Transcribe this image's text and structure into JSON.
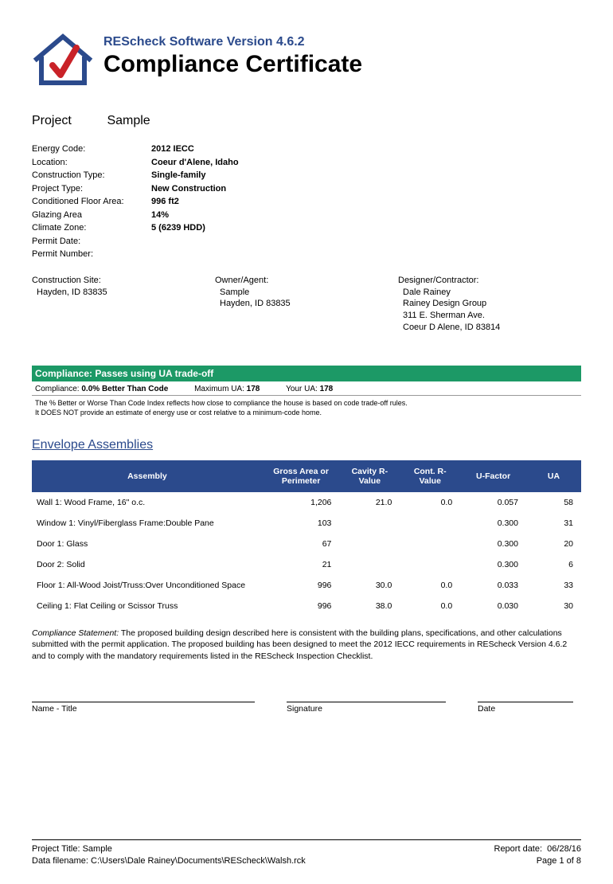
{
  "header": {
    "software_version": "REScheck Software Version 4.6.2",
    "title": "Compliance Certificate",
    "logo_colors": {
      "roof": "#2b4a8c",
      "check": "#c92228"
    }
  },
  "project": {
    "label": "Project",
    "name": "Sample"
  },
  "fields": [
    {
      "label": "Energy Code:",
      "value": "2012 IECC"
    },
    {
      "label": "Location:",
      "value": "Coeur d'Alene, Idaho"
    },
    {
      "label": "Construction Type:",
      "value": "Single-family"
    },
    {
      "label": "Project Type:",
      "value": "New Construction"
    },
    {
      "label": "Conditioned Floor Area:",
      "value": "996 ft2"
    },
    {
      "label": "Glazing Area",
      "value": "14%"
    },
    {
      "label": "Climate Zone:",
      "value": "5  (6239 HDD)"
    },
    {
      "label": "Permit Date:",
      "value": ""
    },
    {
      "label": "Permit Number:",
      "value": ""
    }
  ],
  "contacts": {
    "site": {
      "title": "Construction Site:",
      "lines": [
        "Hayden, ID 83835"
      ]
    },
    "owner": {
      "title": "Owner/Agent:",
      "lines": [
        "Sample",
        "Hayden, ID 83835"
      ]
    },
    "design": {
      "title": "Designer/Contractor:",
      "lines": [
        "Dale Rainey",
        "Rainey Design Group",
        "311 E. Sherman Ave.",
        "Coeur D Alene, ID 83814"
      ]
    }
  },
  "compliance": {
    "bar": "Compliance: Passes using UA trade-off",
    "line2": {
      "label1": "Compliance:",
      "val1": "0.0% Better Than Code",
      "label2": "Maximum UA:",
      "val2": "178",
      "label3": "Your UA:",
      "val3": "178"
    },
    "note1": "The % Better or Worse Than Code Index reflects  how close to compliance the house is based on code trade-off rules.",
    "note2": "It DOES NOT provide an estimate of energy use or cost relative to a minimum-code home."
  },
  "envelope": {
    "title": "Envelope Assemblies",
    "columns": [
      "Assembly",
      "Gross Area or Perimeter",
      "Cavity R-Value",
      "Cont. R-Value",
      "U-Factor",
      "UA"
    ],
    "rows": [
      {
        "name": "Wall 1: Wood Frame, 16\" o.c.",
        "area": "1,206",
        "cavity": "21.0",
        "cont": "0.0",
        "ufactor": "0.057",
        "ua": "58"
      },
      {
        "name": "Window 1: Vinyl/Fiberglass Frame:Double Pane",
        "area": "103",
        "cavity": "",
        "cont": "",
        "ufactor": "0.300",
        "ua": "31"
      },
      {
        "name": "Door 1: Glass",
        "area": "67",
        "cavity": "",
        "cont": "",
        "ufactor": "0.300",
        "ua": "20"
      },
      {
        "name": "Door 2: Solid",
        "area": "21",
        "cavity": "",
        "cont": "",
        "ufactor": "0.300",
        "ua": "6"
      },
      {
        "name": "Floor 1: All-Wood Joist/Truss:Over Unconditioned Space",
        "area": "996",
        "cavity": "30.0",
        "cont": "0.0",
        "ufactor": "0.033",
        "ua": "33"
      },
      {
        "name": "Ceiling 1: Flat Ceiling or Scissor Truss",
        "area": "996",
        "cavity": "38.0",
        "cont": "0.0",
        "ufactor": "0.030",
        "ua": "30"
      }
    ]
  },
  "statement": {
    "lead": "Compliance Statement:",
    "body": "The proposed building design described here is consistent with the building plans, specifications, and other calculations submitted with the permit application. The proposed building has been designed to meet the 2012 IECC requirements in REScheck Version 4.6.2 and to comply with the mandatory requirements listed in the REScheck Inspection Checklist."
  },
  "signatures": {
    "name": "Name - Title",
    "sig": "Signature",
    "date": "Date"
  },
  "footer": {
    "project_title_label": "Project Title:",
    "project_title": "Sample",
    "filename_label": "Data filename:",
    "filename": "C:\\Users\\Dale Rainey\\Documents\\REScheck\\Walsh.rck",
    "report_date_label": "Report date:",
    "report_date": "06/28/16",
    "page": "Page 1 of  8"
  }
}
